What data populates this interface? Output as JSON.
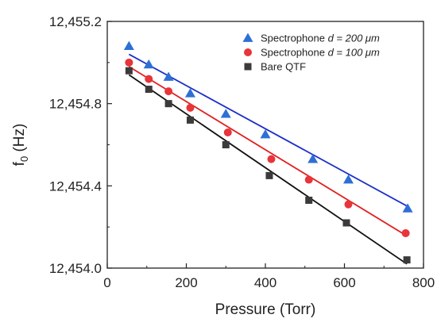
{
  "chart_data": {
    "type": "scatter",
    "xlabel": "Pressure (Torr)",
    "ylabel": "f0 (Hz)",
    "ylabel_main": "f",
    "ylabel_sub": "0",
    "ylabel_rest": " (Hz)",
    "xlim": [
      0,
      800
    ],
    "ylim": [
      12454.0,
      12455.2
    ],
    "xticks": [
      0,
      200,
      400,
      600,
      800
    ],
    "yticks": [
      12454.0,
      12454.4,
      12454.8,
      12455.2
    ],
    "xtick_labels": [
      "0",
      "200",
      "400",
      "600",
      "800"
    ],
    "ytick_labels": [
      "12,454.0",
      "12,454.4",
      "12,454.8",
      "12,455.2"
    ],
    "grid": false,
    "legend_position": "top-right",
    "series": [
      {
        "name": "Spectrophone d = 200 μm",
        "legend_prefix": "Spectrophone ",
        "legend_italic": "d = 200 μm",
        "marker": "triangle",
        "color": "#2e6fd6",
        "line_color": "#1b2fc9",
        "x": [
          55,
          105,
          155,
          210,
          300,
          400,
          520,
          610,
          760
        ],
        "y": [
          12455.08,
          12454.99,
          12454.93,
          12454.85,
          12454.75,
          12454.65,
          12454.53,
          12454.43,
          12454.29
        ],
        "fit": [
          [
            55,
            12455.04
          ],
          [
            760,
            12454.3
          ]
        ]
      },
      {
        "name": "Spectrophone d = 100 μm",
        "legend_prefix": "Spectrophone ",
        "legend_italic": "d = 100 μm",
        "marker": "circle",
        "color": "#e8343a",
        "line_color": "#e0201f",
        "x": [
          55,
          105,
          155,
          210,
          305,
          415,
          510,
          610,
          755
        ],
        "y": [
          12455.0,
          12454.92,
          12454.86,
          12454.78,
          12454.66,
          12454.53,
          12454.43,
          12454.31,
          12454.17
        ],
        "fit": [
          [
            55,
            12454.98
          ],
          [
            755,
            12454.16
          ]
        ]
      },
      {
        "name": "Bare QTF",
        "legend_prefix": "Bare QTF",
        "legend_italic": "",
        "marker": "square",
        "color": "#3b3b3b",
        "line_color": "#111111",
        "x": [
          55,
          105,
          155,
          210,
          300,
          410,
          510,
          605,
          758
        ],
        "y": [
          12454.96,
          12454.87,
          12454.8,
          12454.72,
          12454.6,
          12454.45,
          12454.33,
          12454.22,
          12454.04
        ],
        "fit": [
          [
            55,
            12454.94
          ],
          [
            758,
            12454.02
          ]
        ]
      }
    ]
  }
}
